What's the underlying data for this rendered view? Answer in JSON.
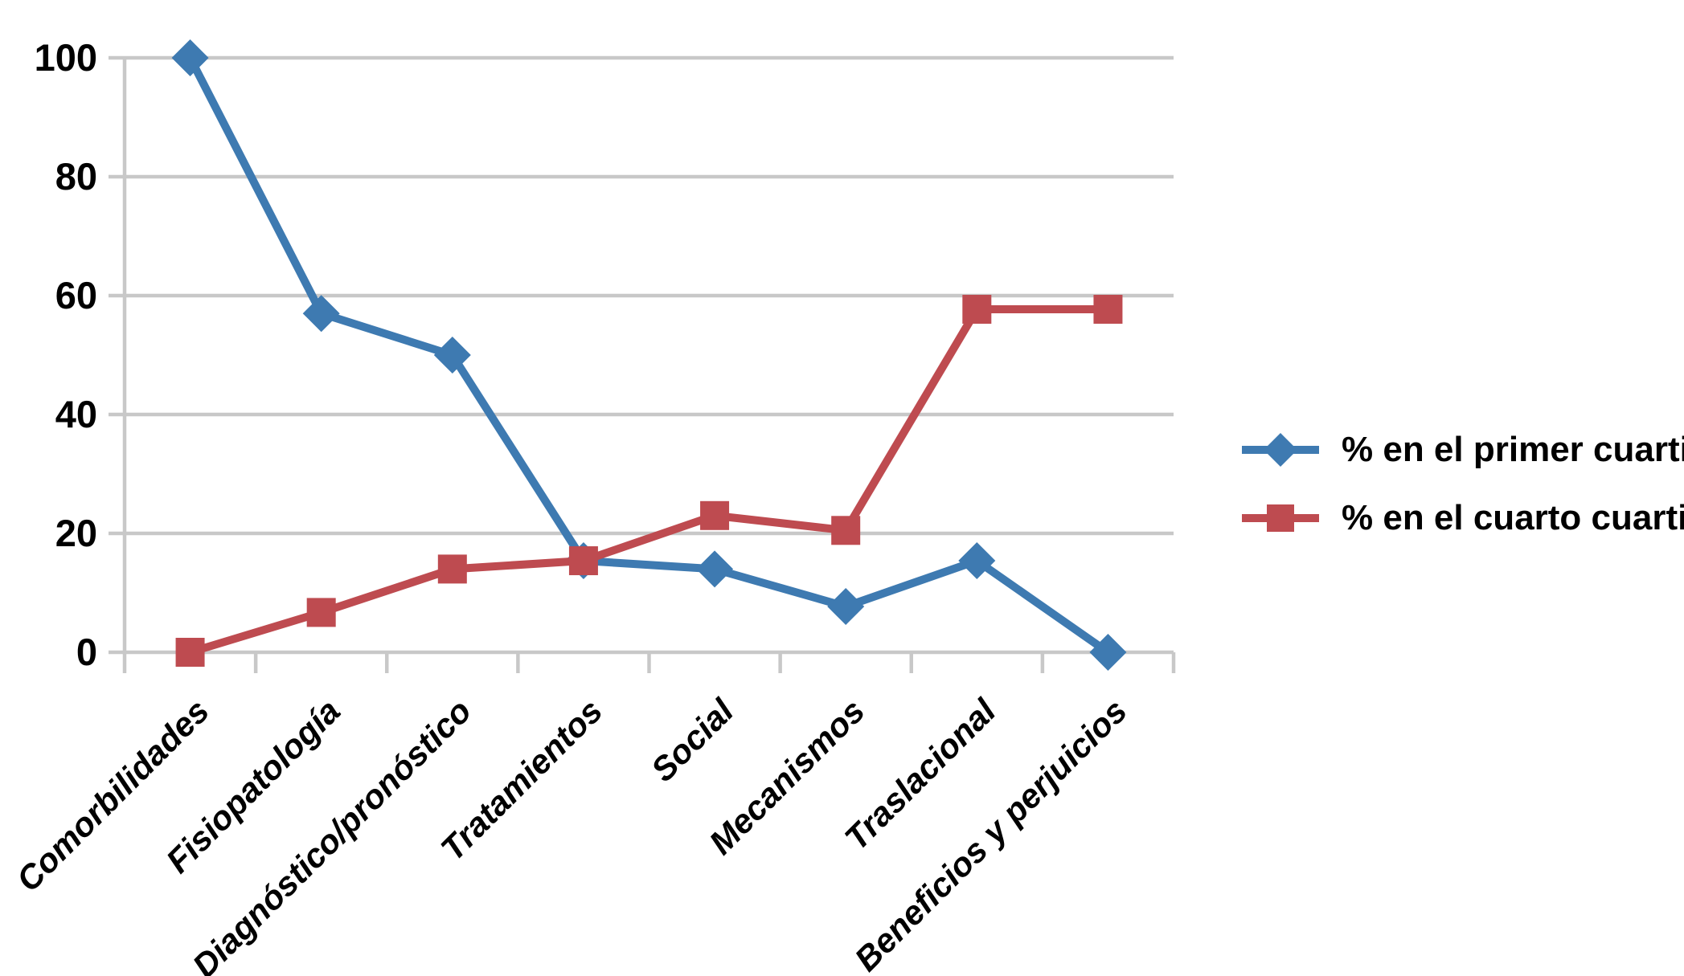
{
  "chart_data": {
    "type": "line",
    "title": "",
    "xlabel": "",
    "ylabel": "",
    "categories": [
      "Comorbilidades",
      "Fisiopatología",
      "Diagnóstico/pronóstico",
      "Tratamientos",
      "Social",
      "Mecanismos",
      "Traslacional",
      "Beneficios y perjuicios"
    ],
    "series": [
      {
        "name": "% en el primer cuartil",
        "marker": "diamond",
        "color": "#3E7AB1",
        "values": [
          100,
          57,
          50,
          15.4,
          14,
          7.7,
          15.4,
          0
        ]
      },
      {
        "name": "% en el cuarto cuartil",
        "marker": "square",
        "color": "#BE4B50",
        "values": [
          0,
          6.7,
          14,
          15.4,
          23,
          20.5,
          57.7,
          57.7
        ]
      }
    ],
    "yticks": [
      0,
      20,
      40,
      60,
      80,
      100
    ],
    "ylim": [
      0,
      100
    ],
    "grid": true,
    "grid_color": "#C8C8C8",
    "text_color": "#000000",
    "legend_position": "right"
  }
}
